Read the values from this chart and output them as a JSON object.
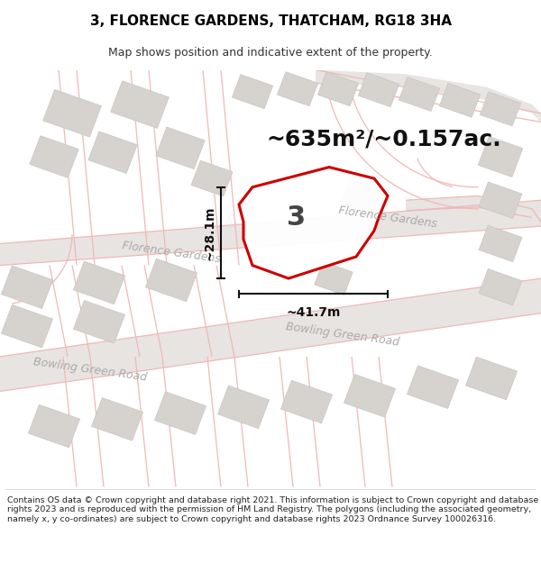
{
  "title": "3, FLORENCE GARDENS, THATCHAM, RG18 3HA",
  "subtitle": "Map shows position and indicative extent of the property.",
  "footer": "Contains OS data © Crown copyright and database right 2021. This information is subject to Crown copyright and database rights 2023 and is reproduced with the permission of HM Land Registry. The polygons (including the associated geometry, namely x, y co-ordinates) are subject to Crown copyright and database rights 2023 Ordnance Survey 100026316.",
  "area_text": "~635m²/~0.157ac.",
  "width_label": "~41.7m",
  "height_label": "~28.1m",
  "number_label": "3",
  "map_bg": "#f0efed",
  "road_fill": "#e8e4e2",
  "road_line": "#f0b8b8",
  "building_color": "#d6d3cf",
  "building_edge": "#c8c4c0",
  "plot_fill": "#ffffff",
  "plot_outline": "#cc0000",
  "road_label_color": "#aaaaaa",
  "dim_color": "#111111",
  "title_fontsize": 11,
  "subtitle_fontsize": 9,
  "footer_fontsize": 6.8,
  "area_fontsize": 18,
  "number_fontsize": 22,
  "dim_fontsize": 10,
  "road_label_fontsize": 9
}
